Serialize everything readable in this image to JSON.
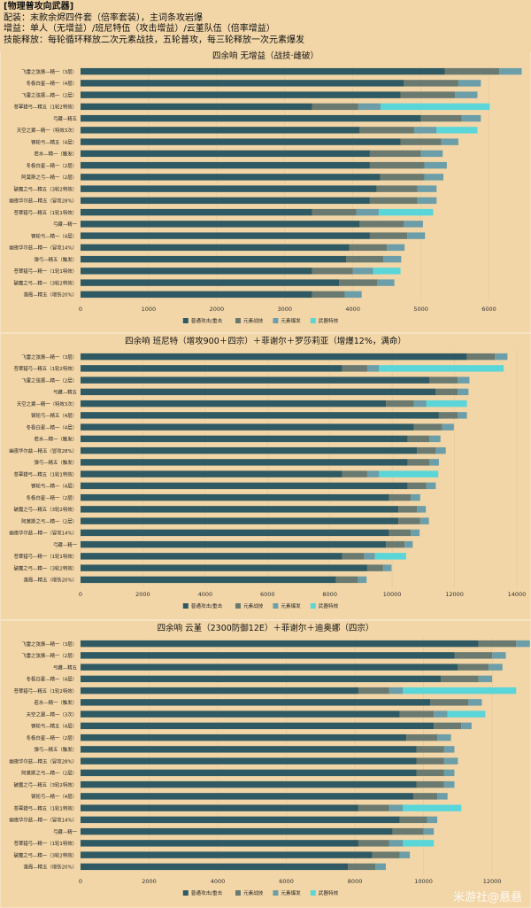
{
  "header": {
    "title": "[物理普攻向武器]",
    "line1": "配装：末款余烬四件套（倍率套装），主词条攻岩爆",
    "line2": "增益：单人（无增益）/班尼特伍（攻击增益）/云堇队伍（倍率增益）",
    "line3": "技能释放：每轮循环释放二次元素战技，五轮普攻，每三轮释放一次元素爆发"
  },
  "colors": {
    "normal": "#2f5a63",
    "skill": "#6b7a70",
    "burst": "#6b9ea8",
    "special": "#5ad6d8",
    "bg": "#f2d6a8"
  },
  "legend_labels": [
    "普通攻击/重击",
    "元素战技",
    "元素爆发",
    "武器特效"
  ],
  "watermark": "米游社@悬悬",
  "chart_data": [
    {
      "type": "bar",
      "orientation": "horizontal",
      "stacked": true,
      "title": "四余响 无增益（战技·雌破）",
      "xlim": [
        0,
        6500
      ],
      "xticks": [
        0,
        1000,
        2000,
        3000,
        4000,
        5000,
        6000
      ],
      "legend": "bottom",
      "categories": [
        "飞雷之弦振—精一（3层）",
        "冬极白星—精一（4层）",
        "飞雷之弦振—精一（2层）",
        "苍翠猎弓—精五（1轮2特效）",
        "弓藏—精五",
        "天空之翼—精一（特效3次）",
        "钢轮弓—精五（4层）",
        "若水—精一（触发）",
        "冬极白星—精一（2层）",
        "阿莫斯之弓—精一（2层）",
        "破魔之弓—精五（3轮2特效）",
        "幽夜华尔兹—精五（冒攻28%）",
        "苍翠猎弓—精五（1轮1特效）",
        "弓藏—精一",
        "钢轮弓—精一（4层）",
        "幽夜华尔兹—精一（冒攻14%）",
        "弹弓—精五（触发）",
        "苍翠猎弓—精一（1轮1特效）",
        "破魔之弓—精一（3轮2特效）",
        "落霞—精五（增伤20%）"
      ],
      "series": [
        {
          "name": "普通攻击/重击",
          "values": [
            5350,
            4750,
            4700,
            3400,
            5000,
            4100,
            4700,
            4250,
            4250,
            4400,
            4350,
            4250,
            3400,
            4100,
            4250,
            3950,
            3900,
            3400,
            3800,
            3400
          ]
        },
        {
          "name": "元素战技",
          "values": [
            800,
            800,
            800,
            680,
            600,
            800,
            600,
            750,
            800,
            650,
            600,
            700,
            650,
            650,
            550,
            550,
            550,
            600,
            560,
            480
          ]
        },
        {
          "name": "元素爆发",
          "values": [
            330,
            330,
            330,
            330,
            280,
            330,
            250,
            320,
            330,
            280,
            280,
            280,
            330,
            280,
            260,
            260,
            260,
            300,
            250,
            250
          ]
        },
        {
          "name": "武器特效",
          "values": [
            0,
            0,
            0,
            1600,
            0,
            600,
            0,
            0,
            0,
            0,
            0,
            0,
            800,
            0,
            0,
            0,
            0,
            400,
            0,
            0
          ]
        }
      ]
    },
    {
      "type": "bar",
      "orientation": "horizontal",
      "stacked": true,
      "title": "四余响 班尼特（增攻900＋四宗）＋菲谢尔＋罗莎莉亚（增爆12%，满命）",
      "xlim": [
        0,
        14200
      ],
      "xticks": [
        0,
        2000,
        4000,
        6000,
        8000,
        10000,
        12000,
        14000
      ],
      "legend": "bottom",
      "categories": [
        "飞雷之弦振—精一（3层）",
        "苍翠猎弓—精五（1轮2特效）",
        "飞雷之弦振—精一（2层）",
        "弓藏—精五",
        "天空之翼—精一（特效3次）",
        "钢轮弓—精五（4层）",
        "冬极白星—精一（4层）",
        "若水—精一（触发）",
        "幽夜华尔兹—精五（冒攻28%）",
        "弹弓—精五（触发）",
        "苍翠猎弓—精五（1轮1特效）",
        "钢轮弓—精一（4层）",
        "冬极白星—精一（2层）",
        "破魔之弓—精五（3轮2特效）",
        "阿莫斯之弓—精一（2层）",
        "幽夜华尔兹—精一（冒攻14%）",
        "弓藏—精一",
        "苍翠猎弓—精一（1轮1特效）",
        "破魔之弓—精一（3轮2特效）",
        "落霞—精五（增伤20%）"
      ],
      "series": [
        {
          "name": "普通攻击/重击",
          "values": [
            12400,
            8400,
            11200,
            11400,
            9800,
            11500,
            10700,
            10500,
            10800,
            10500,
            8400,
            10500,
            9900,
            10200,
            10200,
            9900,
            9800,
            8400,
            9200,
            8200
          ]
        },
        {
          "name": "元素战技",
          "values": [
            900,
            800,
            900,
            700,
            900,
            600,
            900,
            700,
            600,
            700,
            800,
            600,
            700,
            600,
            700,
            700,
            600,
            700,
            500,
            700
          ]
        },
        {
          "name": "元素爆发",
          "values": [
            400,
            380,
            380,
            350,
            400,
            300,
            380,
            350,
            320,
            300,
            380,
            300,
            300,
            280,
            280,
            280,
            260,
            350,
            280,
            280
          ]
        },
        {
          "name": "武器特效",
          "values": [
            0,
            4000,
            0,
            0,
            1300,
            0,
            0,
            0,
            0,
            0,
            1900,
            0,
            0,
            0,
            0,
            0,
            0,
            1000,
            0,
            0
          ]
        }
      ]
    },
    {
      "type": "bar",
      "orientation": "horizontal",
      "stacked": true,
      "title": "四余响 云堇（2300防御12E）＋菲谢尔＋迪奥娜（四宗）",
      "xlim": [
        0,
        12900
      ],
      "xticks": [
        0,
        2000,
        4000,
        6000,
        8000,
        10000,
        12000
      ],
      "legend": "bottom",
      "categories": [
        "飞雷之弦振—精一（3层）",
        "飞雷之弦振—精一（2层）",
        "弓藏—精五",
        "冬极白星—精一（4层）",
        "苍翠猎弓—精五（1轮2特效）",
        "若水—精一（触发）",
        "天空之翼—精一（3次）",
        "钢轮弓—精五（4层）",
        "冬极白星—精一（2层）",
        "弹弓—精五（触发）",
        "幽夜华尔兹—精五（冒攻28%）",
        "阿莫斯之弓—精一（2层）",
        "破魔之弓—精五（3轮2特效）",
        "钢轮弓—精一（4层）",
        "苍翠猎弓—精五（1轮1特效）",
        "幽夜华尔兹—精一（冒攻14%）",
        "弓藏—精一",
        "苍翠猎弓—精一（1轮1特效）",
        "破魔之弓—精一（3轮2特效）",
        "落霞—精五（增伤20%）"
      ],
      "series": [
        {
          "name": "普通攻击/重击",
          "values": [
            11600,
            10900,
            11000,
            10500,
            8100,
            10200,
            9300,
            10300,
            9500,
            9800,
            9800,
            9800,
            9800,
            9700,
            8100,
            9300,
            9100,
            8100,
            8500,
            7800
          ]
        },
        {
          "name": "元素战技",
          "values": [
            1100,
            1100,
            900,
            1100,
            900,
            1100,
            1000,
            800,
            900,
            800,
            800,
            800,
            800,
            700,
            900,
            800,
            900,
            900,
            800,
            800
          ]
        },
        {
          "name": "元素爆发",
          "values": [
            400,
            400,
            400,
            400,
            400,
            400,
            400,
            300,
            400,
            300,
            400,
            300,
            300,
            300,
            400,
            300,
            300,
            400,
            300,
            300
          ]
        },
        {
          "name": "武器特效",
          "values": [
            0,
            0,
            0,
            0,
            3300,
            0,
            1100,
            0,
            0,
            0,
            0,
            0,
            0,
            0,
            1700,
            0,
            0,
            900,
            0,
            0
          ]
        }
      ]
    }
  ]
}
